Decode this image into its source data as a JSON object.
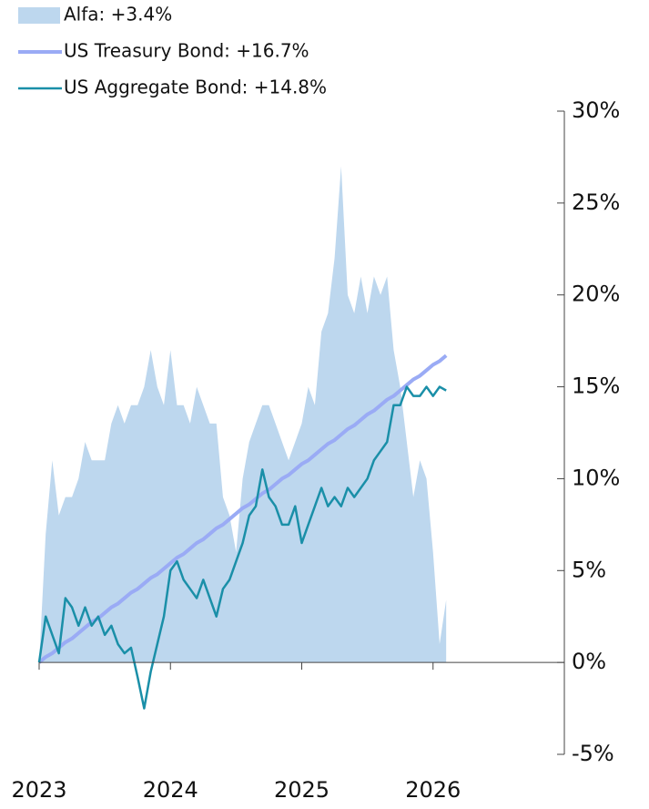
{
  "chart_data": {
    "type": "line",
    "x": [
      2023,
      2023.05,
      2023.1,
      2023.15,
      2023.2,
      2023.25,
      2023.3,
      2023.35,
      2023.4,
      2023.45,
      2023.5,
      2023.55,
      2023.6,
      2023.65,
      2023.7,
      2023.75,
      2023.8,
      2023.85,
      2023.9,
      2023.95,
      2024,
      2024.05,
      2024.1,
      2024.15,
      2024.2,
      2024.25,
      2024.3,
      2024.35,
      2024.4,
      2024.45,
      2024.5,
      2024.55,
      2024.6,
      2024.65,
      2024.7,
      2024.75,
      2024.8,
      2024.85,
      2024.9,
      2024.95,
      2025,
      2025.05,
      2025.1,
      2025.15,
      2025.2,
      2025.25,
      2025.3,
      2025.35,
      2025.4,
      2025.45,
      2025.5,
      2025.55,
      2025.6,
      2025.65,
      2025.7,
      2025.75,
      2025.8,
      2025.85,
      2025.9,
      2025.95,
      2026,
      2026.05,
      2026.1
    ],
    "series": [
      {
        "name": "Alfa: +3.4%",
        "kind": "area",
        "color": "#bdd7ee",
        "values": [
          0,
          7,
          11,
          8,
          9,
          9,
          10,
          12,
          11,
          11,
          11,
          13,
          14,
          13,
          14,
          14,
          15,
          17,
          15,
          14,
          17,
          14,
          14,
          13,
          15,
          14,
          13,
          13,
          9,
          8,
          6,
          10,
          12,
          13,
          14,
          14,
          13,
          12,
          11,
          12,
          13,
          15,
          14,
          18,
          19,
          22,
          27,
          20,
          19,
          21,
          19,
          21,
          20,
          21,
          17,
          15,
          12,
          9,
          11,
          10,
          6,
          1,
          3.4
        ]
      },
      {
        "name": "US Treasury Bond: +16.7%",
        "kind": "line",
        "color": "#9aabf5",
        "values": [
          0,
          0.3,
          0.5,
          0.8,
          1.1,
          1.3,
          1.6,
          1.9,
          2.2,
          2.4,
          2.7,
          3.0,
          3.2,
          3.5,
          3.8,
          4.0,
          4.3,
          4.6,
          4.8,
          5.1,
          5.4,
          5.7,
          5.9,
          6.2,
          6.5,
          6.7,
          7.0,
          7.3,
          7.5,
          7.8,
          8.1,
          8.4,
          8.6,
          8.9,
          9.2,
          9.4,
          9.7,
          10.0,
          10.2,
          10.5,
          10.8,
          11.0,
          11.3,
          11.6,
          11.9,
          12.1,
          12.4,
          12.7,
          12.9,
          13.2,
          13.5,
          13.7,
          14.0,
          14.3,
          14.5,
          14.8,
          15.1,
          15.4,
          15.6,
          15.9,
          16.2,
          16.4,
          16.7
        ]
      },
      {
        "name": "US Aggregate Bond: +14.8%",
        "kind": "line",
        "color": "#1a8fa8",
        "values": [
          0,
          2.5,
          1.5,
          0.5,
          3.5,
          3,
          2,
          3,
          2,
          2.5,
          1.5,
          2,
          1,
          0.5,
          0.8,
          -0.8,
          -2.5,
          -0.5,
          1,
          2.5,
          5,
          5.5,
          4.5,
          4,
          3.5,
          4.5,
          3.5,
          2.5,
          4,
          4.5,
          5.5,
          6.5,
          8,
          8.5,
          10.5,
          9,
          8.5,
          7.5,
          7.5,
          8.5,
          6.5,
          7.5,
          8.5,
          9.5,
          8.5,
          9,
          8.5,
          9.5,
          9,
          9.5,
          10,
          11,
          11.5,
          12,
          14,
          14,
          15,
          14.5,
          14.5,
          15,
          14.5,
          15,
          14.8
        ]
      }
    ],
    "xlim": [
      2023,
      2027
    ],
    "xticks": [
      2023,
      2024,
      2025,
      2026
    ],
    "ylim": [
      -5,
      30
    ],
    "yticks": [
      {
        "value": -5,
        "label": "-5%"
      },
      {
        "value": 0,
        "label": "0%"
      },
      {
        "value": 5,
        "label": "5%"
      },
      {
        "value": 10,
        "label": "10%"
      },
      {
        "value": 15,
        "label": "15%"
      },
      {
        "value": 20,
        "label": "20%"
      },
      {
        "value": 25,
        "label": "25%"
      },
      {
        "value": 30,
        "label": "30%"
      }
    ],
    "legend": "top-left"
  }
}
